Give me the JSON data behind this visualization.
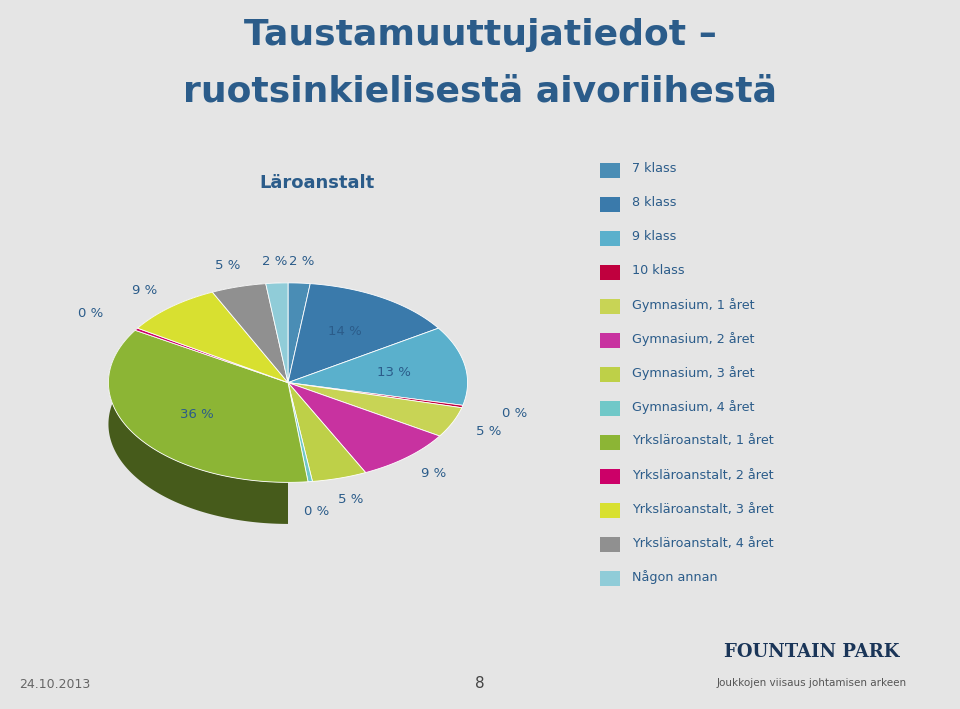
{
  "title_line1": "Taustamuuttujatiedot –",
  "title_line2": "ruotsinkielisestä aivoriihestä",
  "subtitle": "Läroanstalt",
  "legend_labels": [
    "7 klass",
    "8 klass",
    "9 klass",
    "10 klass",
    "Gymnasium, 1 året",
    "Gymnasium, 2 året",
    "Gymnasium, 3 året",
    "Gymnasium, 4 året",
    "Yrksläroanstalt, 1 året",
    "Yrksläroanstalt, 2 året",
    "Yrksläroanstalt, 3 året",
    "Yrksläroanstalt, 4 året",
    "Någon annan"
  ],
  "display_values": [
    2,
    14,
    13,
    0,
    5,
    9,
    5,
    0,
    36,
    0,
    9,
    5,
    2
  ],
  "plot_values": [
    2,
    14,
    13,
    0.4,
    5,
    9,
    5,
    0.4,
    36,
    0.4,
    9,
    5,
    2
  ],
  "colors": [
    "#4a8db5",
    "#3a7aab",
    "#5ab0cc",
    "#c0003e",
    "#c8d455",
    "#c832a0",
    "#bed048",
    "#70c8c8",
    "#8cb535",
    "#cc0068",
    "#d8e030",
    "#909090",
    "#90ccd8"
  ],
  "background_color": "#e5e5e5",
  "title_color": "#2b5c8a",
  "legend_text_color": "#2b5c8a",
  "date_text": "24.10.2013",
  "page_number": "8"
}
